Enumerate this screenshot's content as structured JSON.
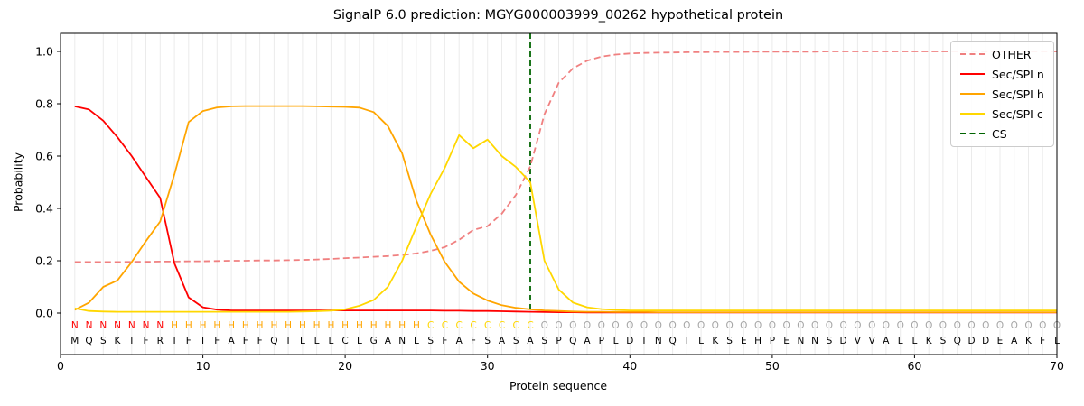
{
  "chart_data": {
    "type": "line",
    "title": "SignalP 6.0 prediction: MGYG000003999_00262 hypothetical protein",
    "xlabel": "Protein sequence",
    "ylabel": "Probability",
    "xlim": [
      0,
      70
    ],
    "ylim": [
      -0.16,
      1.07
    ],
    "grid": "light vertical gridline at every residue position",
    "legend_position": "upper right",
    "x_ticks": [
      {
        "value": 0,
        "label": "0"
      },
      {
        "value": 10,
        "label": "10"
      },
      {
        "value": 20,
        "label": "20"
      },
      {
        "value": 30,
        "label": "30"
      },
      {
        "value": 40,
        "label": "40"
      },
      {
        "value": 50,
        "label": "50"
      },
      {
        "value": 60,
        "label": "60"
      },
      {
        "value": 70,
        "label": "70"
      }
    ],
    "y_ticks": [
      {
        "value": 0.0,
        "label": "0.0"
      },
      {
        "value": 0.2,
        "label": "0.2"
      },
      {
        "value": 0.4,
        "label": "0.4"
      },
      {
        "value": 0.6,
        "label": "0.6"
      },
      {
        "value": 0.8,
        "label": "0.8"
      },
      {
        "value": 1.0,
        "label": "1.0"
      }
    ],
    "cs_position": 33,
    "cs_label": "CS",
    "cs_color": "#006400",
    "sequence": "MQSKTFRTFIFAFFQILLLCLGANLSFAFSASASPQAPLDTNQILKSEHPENNSDVVALLKSQDDEAKFL",
    "regions": "NNNNNNNHHHHHHHHHHHHHHHHHHCCCCCCCCOOOOOOOOOOOOOOOOOOOOOOOOOOOOOOOOOOOOO",
    "region_colors": {
      "N": "#ff0000",
      "H": "#ffa500",
      "C": "#ffd700",
      "O": "#a6a6a6"
    },
    "gridline_color": "#ebebeb",
    "series": [
      {
        "name": "OTHER",
        "color": "#f08080",
        "dash": true,
        "values": [
          0.195,
          0.195,
          0.195,
          0.195,
          0.196,
          0.196,
          0.197,
          0.197,
          0.198,
          0.198,
          0.199,
          0.2,
          0.2,
          0.201,
          0.201,
          0.202,
          0.203,
          0.205,
          0.207,
          0.21,
          0.212,
          0.215,
          0.218,
          0.222,
          0.228,
          0.238,
          0.252,
          0.28,
          0.318,
          0.332,
          0.38,
          0.452,
          0.56,
          0.76,
          0.88,
          0.935,
          0.965,
          0.98,
          0.988,
          0.992,
          0.994,
          0.995,
          0.996,
          0.997,
          0.997,
          0.998,
          0.998,
          0.998,
          0.999,
          0.999,
          0.999,
          0.999,
          0.999,
          1.0,
          1.0,
          1.0,
          1.0,
          1.0,
          1.0,
          1.0,
          1.0,
          1.0,
          1.0,
          1.0,
          1.0,
          1.0,
          1.0,
          1.0,
          1.0,
          1.0
        ]
      },
      {
        "name": "Sec/SPI n",
        "color": "#ff0000",
        "dash": false,
        "values": [
          0.79,
          0.778,
          0.735,
          0.672,
          0.6,
          0.52,
          0.44,
          0.19,
          0.06,
          0.022,
          0.013,
          0.01,
          0.01,
          0.01,
          0.01,
          0.01,
          0.01,
          0.01,
          0.01,
          0.01,
          0.01,
          0.01,
          0.01,
          0.01,
          0.01,
          0.01,
          0.009,
          0.009,
          0.008,
          0.008,
          0.007,
          0.006,
          0.005,
          0.004,
          0.003,
          0.003,
          0.002,
          0.002,
          0.002,
          0.002,
          0.002,
          0.002,
          0.002,
          0.002,
          0.002,
          0.002,
          0.002,
          0.002,
          0.002,
          0.002,
          0.002,
          0.002,
          0.002,
          0.002,
          0.002,
          0.002,
          0.002,
          0.002,
          0.002,
          0.002,
          0.002,
          0.002,
          0.002,
          0.002,
          0.002,
          0.002,
          0.002,
          0.002,
          0.002,
          0.002
        ]
      },
      {
        "name": "Sec/SPI h",
        "color": "#ffa500",
        "dash": false,
        "values": [
          0.012,
          0.04,
          0.1,
          0.125,
          0.195,
          0.275,
          0.35,
          0.53,
          0.73,
          0.772,
          0.786,
          0.79,
          0.791,
          0.791,
          0.791,
          0.791,
          0.791,
          0.79,
          0.789,
          0.788,
          0.785,
          0.768,
          0.715,
          0.61,
          0.43,
          0.3,
          0.195,
          0.12,
          0.075,
          0.048,
          0.03,
          0.02,
          0.014,
          0.01,
          0.008,
          0.006,
          0.005,
          0.005,
          0.004,
          0.004,
          0.004,
          0.003,
          0.003,
          0.003,
          0.003,
          0.003,
          0.003,
          0.003,
          0.003,
          0.003,
          0.003,
          0.003,
          0.003,
          0.003,
          0.003,
          0.003,
          0.003,
          0.003,
          0.003,
          0.003,
          0.003,
          0.003,
          0.003,
          0.003,
          0.003,
          0.003,
          0.003,
          0.003,
          0.003,
          0.003
        ]
      },
      {
        "name": "Sec/SPI c",
        "color": "#ffd700",
        "dash": false,
        "values": [
          0.018,
          0.008,
          0.006,
          0.005,
          0.005,
          0.005,
          0.005,
          0.005,
          0.005,
          0.005,
          0.005,
          0.005,
          0.005,
          0.005,
          0.005,
          0.005,
          0.006,
          0.007,
          0.009,
          0.014,
          0.028,
          0.05,
          0.1,
          0.2,
          0.33,
          0.455,
          0.555,
          0.68,
          0.63,
          0.663,
          0.6,
          0.558,
          0.5,
          0.2,
          0.09,
          0.04,
          0.022,
          0.015,
          0.012,
          0.01,
          0.01,
          0.01,
          0.01,
          0.01,
          0.01,
          0.01,
          0.01,
          0.01,
          0.01,
          0.01,
          0.01,
          0.01,
          0.01,
          0.01,
          0.01,
          0.01,
          0.01,
          0.01,
          0.01,
          0.01,
          0.01,
          0.01,
          0.01,
          0.01,
          0.01,
          0.01,
          0.01,
          0.01,
          0.01,
          0.01
        ]
      }
    ]
  }
}
